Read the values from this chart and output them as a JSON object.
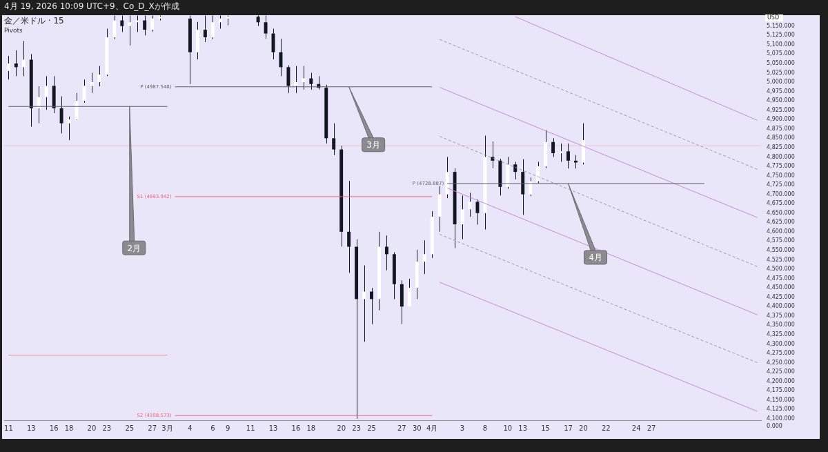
{
  "chart_data": {
    "type": "candlestick",
    "title": "金／米ドル · 15",
    "subtitle": "Pivots",
    "ylabel": "USD",
    "color": "#131722",
    "categories": [
      "11",
      null,
      null,
      "13",
      null,
      null,
      "16",
      null,
      "18",
      null,
      null,
      "20",
      null,
      "23",
      null,
      null,
      "25",
      null,
      null,
      "27",
      null,
      "3月",
      null,
      null,
      "4",
      null,
      null,
      "6",
      null,
      "9",
      null,
      null,
      "11",
      null,
      null,
      "13",
      null,
      null,
      "16",
      null,
      "18",
      null,
      null,
      null,
      "20",
      null,
      "23",
      null,
      "25",
      null,
      null,
      null,
      "27",
      null,
      "30",
      null,
      "4月",
      null,
      null,
      null,
      "3",
      null,
      null,
      "8",
      null,
      null,
      "10",
      null,
      "13",
      null,
      null,
      "15",
      null,
      null,
      "17",
      null,
      "20",
      null,
      null,
      "22",
      null,
      null,
      null,
      "24",
      null,
      "27",
      null,
      null,
      null,
      null,
      null,
      null,
      null,
      null,
      null,
      null,
      null,
      null,
      null,
      null
    ],
    "ohlc": [
      [
        5030,
        5070,
        5007,
        5050
      ],
      [
        5050,
        5085,
        5016,
        5040
      ],
      [
        5040,
        5110,
        5016,
        5060
      ],
      [
        5060,
        5075,
        4881,
        4930
      ],
      [
        4930,
        4989,
        4890,
        4960
      ],
      [
        4960,
        5016,
        4926,
        4990
      ],
      [
        4990,
        5016,
        4917,
        4930
      ],
      [
        4930,
        4962,
        4863,
        4890
      ],
      [
        4890,
        4908,
        4845,
        4900
      ],
      [
        4900,
        4971,
        4899,
        4950
      ],
      [
        4950,
        5007,
        4945,
        4990
      ],
      [
        4990,
        5025,
        4971,
        5000
      ],
      [
        5000,
        5043,
        4989,
        5020
      ],
      [
        5020,
        5143,
        5016,
        5120
      ],
      [
        5120,
        5178,
        5115,
        5165
      ],
      [
        5165,
        5178,
        5134,
        5150
      ],
      [
        5150,
        5178,
        5098,
        5160
      ],
      [
        5160,
        5178,
        5134,
        5165
      ],
      [
        5165,
        5178,
        5125,
        5140
      ],
      [
        5140,
        5178,
        5135,
        5170
      ],
      [
        5170,
        5178,
        5165,
        5175
      ],
      null,
      null,
      null,
      [
        5170,
        5178,
        4995,
        5080
      ],
      [
        5080,
        5161,
        5061,
        5140
      ],
      [
        5140,
        5178,
        5107,
        5120
      ],
      [
        5120,
        5178,
        5115,
        5160
      ],
      [
        5160,
        5178,
        5143,
        5170
      ],
      [
        5170,
        5178,
        5152,
        5175
      ],
      null,
      null,
      null,
      [
        5175,
        5178,
        5150,
        5160
      ],
      [
        5160,
        5178,
        5116,
        5130
      ],
      [
        5130,
        5143,
        5061,
        5080
      ],
      [
        5080,
        5116,
        5016,
        5040
      ],
      [
        5040,
        5045,
        4971,
        4990
      ],
      [
        4990,
        5043,
        4971,
        5000
      ],
      [
        5000,
        5043,
        4980,
        5010
      ],
      [
        5010,
        5025,
        4980,
        4995
      ],
      [
        4995,
        5016,
        4980,
        4985
      ],
      [
        4985,
        4993,
        4836,
        4850
      ],
      [
        4850,
        4890,
        4805,
        4820
      ],
      [
        4820,
        4830,
        4560,
        4600
      ],
      [
        4600,
        4736,
        4490,
        4560
      ],
      [
        4560,
        4580,
        4100,
        4420
      ],
      [
        4420,
        4510,
        4306,
        4440
      ],
      [
        4440,
        4450,
        4353,
        4420
      ],
      [
        4420,
        4600,
        4390,
        4560
      ],
      [
        4560,
        4590,
        4497,
        4540
      ],
      [
        4540,
        4545,
        4420,
        4460
      ],
      [
        4460,
        4470,
        4353,
        4400
      ],
      [
        4400,
        4474,
        4400,
        4450
      ],
      [
        4450,
        4552,
        4420,
        4520
      ],
      [
        4520,
        4577,
        4487,
        4540
      ],
      [
        4540,
        4655,
        4530,
        4640
      ],
      [
        4640,
        4722,
        4600,
        4700
      ],
      [
        4700,
        4800,
        4690,
        4760
      ],
      [
        4760,
        4770,
        4556,
        4620
      ],
      [
        4620,
        4697,
        4580,
        4660
      ],
      [
        4660,
        4704,
        4640,
        4680
      ],
      [
        4680,
        4686,
        4619,
        4650
      ],
      [
        4650,
        4857,
        4606,
        4800
      ],
      [
        4800,
        4841,
        4770,
        4790
      ],
      [
        4790,
        4795,
        4697,
        4720
      ],
      [
        4720,
        4800,
        4715,
        4780
      ],
      [
        4780,
        4787,
        4740,
        4760
      ],
      [
        4760,
        4794,
        4645,
        4700
      ],
      [
        4700,
        4745,
        4695,
        4735
      ],
      [
        4735,
        4787,
        4730,
        4775
      ],
      [
        4775,
        4872,
        4770,
        4840
      ],
      [
        4840,
        4850,
        4800,
        4810
      ],
      [
        4810,
        4836,
        4787,
        4815
      ],
      [
        4815,
        4836,
        4769,
        4790
      ],
      [
        4790,
        4805,
        4769,
        4785
      ],
      [
        4785,
        4890,
        4780,
        4845
      ],
      null,
      null,
      null,
      null,
      null,
      null,
      null,
      null,
      null,
      null,
      null,
      null,
      null,
      null,
      null,
      null,
      null,
      null,
      null,
      null,
      null,
      null,
      null
    ],
    "series": [
      {
        "type": "line",
        "color": "#5d606b",
        "values": [
          4935,
          null,
          null,
          null,
          null,
          null,
          null,
          null,
          null,
          null,
          null,
          null,
          null,
          null,
          null,
          null,
          null,
          null,
          null,
          null,
          null,
          4935,
          null,
          null,
          null,
          null,
          null,
          null,
          null,
          null,
          null,
          null,
          null,
          null,
          null,
          null,
          null,
          null,
          null,
          null,
          null,
          null,
          null,
          null,
          null,
          null,
          null,
          null,
          null,
          null,
          null,
          null,
          null,
          null,
          null,
          null,
          null,
          null,
          null,
          null,
          null,
          null,
          null,
          null,
          null,
          null,
          null,
          null,
          null,
          null,
          null,
          null,
          null,
          null,
          null,
          null,
          null,
          null,
          null,
          null,
          null,
          null,
          null,
          null,
          null,
          null,
          null,
          null,
          null,
          null,
          null,
          null,
          null,
          null,
          null,
          null,
          null,
          null,
          null,
          null
        ]
      },
      {
        "type": "line",
        "color": "#f08a9c",
        "values": [
          4270,
          null,
          null,
          null,
          null,
          null,
          null,
          null,
          null,
          null,
          null,
          null,
          null,
          null,
          null,
          null,
          null,
          null,
          null,
          null,
          null,
          4270,
          null,
          null,
          null,
          null,
          null,
          null,
          null,
          null,
          null,
          null,
          null,
          null,
          null,
          null,
          null,
          null,
          null,
          null,
          null,
          null,
          null,
          null,
          null,
          null,
          null,
          null,
          null,
          null,
          null,
          null,
          null,
          null,
          null,
          null,
          null,
          null,
          null,
          null,
          null,
          null,
          null,
          null,
          null,
          null,
          null,
          null,
          null,
          null,
          null,
          null,
          null,
          null,
          null,
          null,
          null,
          null,
          null,
          null,
          null,
          null,
          null,
          null,
          null,
          null,
          null,
          null,
          null,
          null,
          null,
          null,
          null,
          null,
          null,
          null,
          null,
          null,
          null,
          null
        ]
      },
      {
        "type": "line",
        "name": "P (4987.548)",
        "color": "#5d606b",
        "values": [
          null,
          null,
          null,
          null,
          null,
          null,
          null,
          null,
          null,
          null,
          null,
          null,
          null,
          null,
          null,
          null,
          null,
          null,
          null,
          null,
          null,
          null,
          4987.548,
          null,
          null,
          null,
          null,
          null,
          null,
          null,
          null,
          null,
          null,
          null,
          null,
          null,
          null,
          null,
          null,
          null,
          null,
          null,
          null,
          null,
          null,
          null,
          null,
          null,
          null,
          null,
          null,
          null,
          null,
          null,
          null,
          null,
          4987.548,
          null,
          null,
          null,
          null,
          null,
          null,
          null,
          null,
          null,
          null,
          null,
          null,
          null,
          null,
          null,
          null,
          null,
          null,
          null,
          null,
          null,
          null,
          null,
          null,
          null,
          null,
          null,
          null,
          null,
          null,
          null,
          null,
          null,
          null,
          null,
          null,
          null,
          null,
          null,
          null,
          null,
          null,
          null
        ]
      },
      {
        "type": "line",
        "name": "S1 (4693.942)",
        "color": "#f0627a",
        "values": [
          null,
          null,
          null,
          null,
          null,
          null,
          null,
          null,
          null,
          null,
          null,
          null,
          null,
          null,
          null,
          null,
          null,
          null,
          null,
          null,
          null,
          null,
          4693.942,
          null,
          null,
          null,
          null,
          null,
          null,
          null,
          null,
          null,
          null,
          null,
          null,
          null,
          null,
          null,
          null,
          null,
          null,
          null,
          null,
          null,
          null,
          null,
          null,
          null,
          null,
          null,
          null,
          null,
          null,
          null,
          null,
          null,
          4693.942,
          null,
          null,
          null,
          null,
          null,
          null,
          null,
          null,
          null,
          null,
          null,
          null,
          null,
          null,
          null,
          null,
          null,
          null,
          null,
          null,
          null,
          null,
          null,
          null,
          null,
          null,
          null,
          null,
          null,
          null,
          null,
          null,
          null,
          null,
          null,
          null,
          null,
          null,
          null,
          null,
          null,
          null,
          null
        ]
      },
      {
        "type": "line",
        "name": "S2 (4108.573)",
        "color": "#f0627a",
        "values": [
          null,
          null,
          null,
          null,
          null,
          null,
          null,
          null,
          null,
          null,
          null,
          null,
          null,
          null,
          null,
          null,
          null,
          null,
          null,
          null,
          null,
          null,
          4108.573,
          null,
          null,
          null,
          null,
          null,
          null,
          null,
          null,
          null,
          null,
          null,
          null,
          null,
          null,
          null,
          null,
          null,
          null,
          null,
          null,
          null,
          null,
          null,
          null,
          null,
          null,
          null,
          null,
          null,
          null,
          null,
          null,
          null,
          4108.573,
          null,
          null,
          null,
          null,
          null,
          null,
          null,
          null,
          null,
          null,
          null,
          null,
          null,
          null,
          null,
          null,
          null,
          null,
          null,
          null,
          null,
          null,
          null,
          null,
          null,
          null,
          null,
          null,
          null,
          null,
          null,
          null,
          null,
          null,
          null,
          null,
          null,
          null,
          null,
          null,
          null,
          null,
          null
        ]
      },
      {
        "type": "line",
        "name": "P (4728.887)",
        "color": "#5d606b",
        "values": [
          null,
          null,
          null,
          null,
          null,
          null,
          null,
          null,
          null,
          null,
          null,
          null,
          null,
          null,
          null,
          null,
          null,
          null,
          null,
          null,
          null,
          null,
          null,
          null,
          null,
          null,
          null,
          null,
          null,
          null,
          null,
          null,
          null,
          null,
          null,
          null,
          null,
          null,
          null,
          null,
          null,
          null,
          null,
          null,
          null,
          null,
          null,
          null,
          null,
          null,
          null,
          null,
          null,
          null,
          null,
          null,
          null,
          null,
          4728.887,
          null,
          null,
          null,
          null,
          null,
          null,
          null,
          null,
          null,
          null,
          null,
          null,
          null,
          null,
          null,
          null,
          null,
          null,
          null,
          null,
          null,
          null,
          null,
          null,
          null,
          null,
          null,
          null,
          null,
          null,
          null,
          null,
          null,
          4728.887,
          null,
          null,
          null,
          null,
          null,
          null,
          null
        ]
      },
      {
        "type": "line",
        "color": "#c98ad8",
        "values": [
          null,
          null,
          null,
          null,
          null,
          null,
          null,
          null,
          null,
          null,
          null,
          null,
          null,
          null,
          null,
          null,
          null,
          null,
          null,
          null,
          null,
          null,
          null,
          null,
          null,
          null,
          null,
          null,
          null,
          null,
          null,
          null,
          null,
          null,
          null,
          null,
          null,
          null,
          null,
          null,
          null,
          null,
          null,
          null,
          null,
          null,
          null,
          null,
          null,
          null,
          null,
          null,
          null,
          null,
          null,
          null,
          null,
          null,
          null,
          null,
          null,
          null,
          null,
          null,
          null,
          null,
          null,
          5175,
          null,
          null,
          null,
          null,
          null,
          null,
          null,
          null,
          null,
          null,
          null,
          null,
          null,
          null,
          null,
          null,
          null,
          null,
          null,
          null,
          null,
          null,
          null,
          null,
          null,
          null,
          null,
          null,
          null,
          null,
          null,
          4898
        ]
      },
      {
        "type": "line",
        "color": "#9c98ad",
        "line_style": "dashed",
        "values": [
          null,
          null,
          null,
          null,
          null,
          null,
          null,
          null,
          null,
          null,
          null,
          null,
          null,
          null,
          null,
          null,
          null,
          null,
          null,
          null,
          null,
          null,
          null,
          null,
          null,
          null,
          null,
          null,
          null,
          null,
          null,
          null,
          null,
          null,
          null,
          null,
          null,
          null,
          null,
          null,
          null,
          null,
          null,
          null,
          null,
          null,
          null,
          null,
          null,
          null,
          null,
          null,
          null,
          null,
          null,
          null,
          null,
          5114,
          null,
          null,
          null,
          null,
          null,
          null,
          null,
          null,
          null,
          null,
          null,
          null,
          null,
          null,
          null,
          null,
          null,
          null,
          null,
          null,
          null,
          null,
          null,
          null,
          null,
          null,
          null,
          null,
          null,
          null,
          null,
          null,
          null,
          null,
          null,
          null,
          null,
          null,
          null,
          null,
          null,
          4767
        ]
      },
      {
        "type": "line",
        "color": "#c98ad8",
        "values": [
          null,
          null,
          null,
          null,
          null,
          null,
          null,
          null,
          null,
          null,
          null,
          null,
          null,
          null,
          null,
          null,
          null,
          null,
          null,
          null,
          null,
          null,
          null,
          null,
          null,
          null,
          null,
          null,
          null,
          null,
          null,
          null,
          null,
          null,
          null,
          null,
          null,
          null,
          null,
          null,
          null,
          null,
          null,
          null,
          null,
          null,
          null,
          null,
          null,
          null,
          null,
          null,
          null,
          null,
          null,
          null,
          null,
          4986,
          null,
          null,
          null,
          null,
          null,
          null,
          null,
          null,
          null,
          null,
          null,
          null,
          null,
          null,
          null,
          null,
          null,
          null,
          null,
          null,
          null,
          null,
          null,
          null,
          null,
          null,
          null,
          null,
          null,
          null,
          null,
          null,
          null,
          null,
          null,
          null,
          null,
          null,
          null,
          null,
          null,
          4638
        ]
      },
      {
        "type": "line",
        "color": "#9c98ad",
        "line_style": "dashed",
        "values": [
          null,
          null,
          null,
          null,
          null,
          null,
          null,
          null,
          null,
          null,
          null,
          null,
          null,
          null,
          null,
          null,
          null,
          null,
          null,
          null,
          null,
          null,
          null,
          null,
          null,
          null,
          null,
          null,
          null,
          null,
          null,
          null,
          null,
          null,
          null,
          null,
          null,
          null,
          null,
          null,
          null,
          null,
          null,
          null,
          null,
          null,
          null,
          null,
          null,
          null,
          null,
          null,
          null,
          null,
          null,
          null,
          null,
          4855,
          null,
          null,
          null,
          null,
          null,
          null,
          null,
          null,
          null,
          null,
          null,
          null,
          null,
          null,
          null,
          null,
          null,
          null,
          null,
          null,
          null,
          null,
          null,
          null,
          null,
          null,
          null,
          null,
          null,
          null,
          null,
          null,
          null,
          null,
          null,
          null,
          null,
          null,
          null,
          null,
          null,
          4507
        ]
      },
      {
        "type": "line",
        "color": "#c98ad8",
        "values": [
          null,
          null,
          null,
          null,
          null,
          null,
          null,
          null,
          null,
          null,
          null,
          null,
          null,
          null,
          null,
          null,
          null,
          null,
          null,
          null,
          null,
          null,
          null,
          null,
          null,
          null,
          null,
          null,
          null,
          null,
          null,
          null,
          null,
          null,
          null,
          null,
          null,
          null,
          null,
          null,
          null,
          null,
          null,
          null,
          null,
          null,
          null,
          null,
          null,
          null,
          null,
          null,
          null,
          null,
          null,
          null,
          null,
          null,
          4717,
          null,
          null,
          null,
          null,
          null,
          null,
          null,
          null,
          null,
          null,
          null,
          null,
          null,
          null,
          null,
          null,
          null,
          null,
          null,
          null,
          null,
          null,
          null,
          null,
          null,
          null,
          null,
          null,
          null,
          null,
          null,
          null,
          null,
          null,
          null,
          null,
          null,
          null,
          null,
          null,
          4378
        ]
      },
      {
        "type": "line",
        "color": "#9c98ad",
        "line_style": "dashed",
        "values": [
          null,
          null,
          null,
          null,
          null,
          null,
          null,
          null,
          null,
          null,
          null,
          null,
          null,
          null,
          null,
          null,
          null,
          null,
          null,
          null,
          null,
          null,
          null,
          null,
          null,
          null,
          null,
          null,
          null,
          null,
          null,
          null,
          null,
          null,
          null,
          null,
          null,
          null,
          null,
          null,
          null,
          null,
          null,
          null,
          null,
          null,
          null,
          null,
          null,
          null,
          null,
          null,
          null,
          null,
          null,
          null,
          null,
          4593,
          null,
          null,
          null,
          null,
          null,
          null,
          null,
          null,
          null,
          null,
          null,
          null,
          null,
          null,
          null,
          null,
          null,
          null,
          null,
          null,
          null,
          null,
          null,
          null,
          null,
          null,
          null,
          null,
          null,
          null,
          null,
          null,
          null,
          null,
          null,
          null,
          null,
          null,
          null,
          null,
          null,
          4250
        ]
      },
      {
        "type": "line",
        "color": "#c98ad8",
        "values": [
          null,
          null,
          null,
          null,
          null,
          null,
          null,
          null,
          null,
          null,
          null,
          null,
          null,
          null,
          null,
          null,
          null,
          null,
          null,
          null,
          null,
          null,
          null,
          null,
          null,
          null,
          null,
          null,
          null,
          null,
          null,
          null,
          null,
          null,
          null,
          null,
          null,
          null,
          null,
          null,
          null,
          null,
          null,
          null,
          null,
          null,
          null,
          null,
          null,
          null,
          null,
          null,
          null,
          null,
          null,
          null,
          null,
          4465,
          null,
          null,
          null,
          null,
          null,
          null,
          null,
          null,
          null,
          null,
          null,
          null,
          null,
          null,
          null,
          null,
          null,
          null,
          null,
          null,
          null,
          null,
          null,
          null,
          null,
          null,
          null,
          null,
          null,
          null,
          null,
          null,
          null,
          null,
          null,
          null,
          null,
          null,
          null,
          null,
          null,
          4120
        ]
      }
    ],
    "ref_lines": [
      {
        "axis": "y",
        "value": 4830,
        "color": "#f4c4d4"
      }
    ],
    "colors": [
      "#ffffff",
      "#131722",
      "#ffffff",
      "#131722",
      "#ffffff",
      "#ffffff",
      "#131722",
      "#131722",
      "#ffffff",
      "#ffffff",
      "#ffffff",
      "#ffffff",
      "#ffffff",
      "#ffffff",
      "#ffffff",
      "#131722",
      "#ffffff",
      "#ffffff",
      "#131722",
      "#ffffff",
      "#ffffff",
      null,
      null,
      null,
      "#131722",
      "#ffffff",
      "#131722",
      "#ffffff",
      "#ffffff",
      "#ffffff",
      null,
      null,
      null,
      "#131722",
      "#131722",
      "#131722",
      "#131722",
      "#131722",
      "#ffffff",
      "#ffffff",
      "#131722",
      "#131722",
      "#131722",
      "#131722",
      "#131722",
      "#131722",
      "#131722",
      "#ffffff",
      "#131722",
      "#ffffff",
      "#131722",
      "#131722",
      "#131722",
      "#ffffff",
      "#ffffff",
      "#ffffff",
      "#ffffff",
      "#ffffff",
      "#ffffff",
      "#131722",
      "#ffffff",
      "#ffffff",
      "#131722",
      "#ffffff",
      "#131722",
      "#131722",
      "#ffffff",
      "#131722",
      "#131722",
      "#ffffff",
      "#ffffff",
      "#ffffff",
      "#131722",
      "#ffffff",
      "#131722",
      "#131722",
      "#ffffff",
      null,
      null,
      null,
      null,
      null,
      null,
      null,
      null,
      null,
      null,
      null,
      null,
      null,
      null,
      null,
      null,
      null,
      null,
      null,
      null,
      null,
      null,
      null
    ],
    "ylim": [
      4096,
      5179
    ],
    "yticks": [
      {
        "value": 4100,
        "label": "4,100.000"
      },
      {
        "value": 4125,
        "label": "4,125.000"
      },
      {
        "value": 4150,
        "label": "4,150.000"
      },
      {
        "value": 4175,
        "label": "4,175.000"
      },
      {
        "value": 4200,
        "label": "4,200.000"
      },
      {
        "value": 4225,
        "label": "4,225.000"
      },
      {
        "value": 4250,
        "label": "4,250.000"
      },
      {
        "value": 4275,
        "label": "4,275.000"
      },
      {
        "value": 4300,
        "label": "4,300.000"
      },
      {
        "value": 4325,
        "label": "4,325.000"
      },
      {
        "value": 4350,
        "label": "4,350.000"
      },
      {
        "value": 4375,
        "label": "4,375.000"
      },
      {
        "value": 4400,
        "label": "4,400.000"
      },
      {
        "value": 4425,
        "label": "4,425.000"
      },
      {
        "value": 4450,
        "label": "4,450.000"
      },
      {
        "value": 4475,
        "label": "4,475.000"
      },
      {
        "value": 4500,
        "label": "4,500.000"
      },
      {
        "value": 4525,
        "label": "4,525.000"
      },
      {
        "value": 4550,
        "label": "4,550.000"
      },
      {
        "value": 4575,
        "label": "4,575.000"
      },
      {
        "value": 4600,
        "label": "4,600.000"
      },
      {
        "value": 4625,
        "label": "4,625.000"
      },
      {
        "value": 4650,
        "label": "4,650.000"
      },
      {
        "value": 4675,
        "label": "4,675.000"
      },
      {
        "value": 4700,
        "label": "4,700.000"
      },
      {
        "value": 4725,
        "label": "4,725.000"
      },
      {
        "value": 4750,
        "label": "4,750.000"
      },
      {
        "value": 4775,
        "label": "4,775.000"
      },
      {
        "value": 4800,
        "label": "4,800.000"
      },
      {
        "value": 4825,
        "label": "4,825.000"
      },
      {
        "value": 4850,
        "label": "4,850.000"
      },
      {
        "value": 4875,
        "label": "4,875.000"
      },
      {
        "value": 4900,
        "label": "4,900.000"
      },
      {
        "value": 4925,
        "label": "4,925.000"
      },
      {
        "value": 4950,
        "label": "4,950.000"
      },
      {
        "value": 4975,
        "label": "4,975.000"
      },
      {
        "value": 5000,
        "label": "5,000.000"
      },
      {
        "value": 5025,
        "label": "5,025.000"
      },
      {
        "value": 5050,
        "label": "5,050.000"
      },
      {
        "value": 5075,
        "label": "5,075.000"
      },
      {
        "value": 5100,
        "label": "5,100.000"
      },
      {
        "value": 5125,
        "label": "5,125.000"
      },
      {
        "value": 5150,
        "label": "5,150.000"
      }
    ],
    "annotations": [
      "4月 19, 2026 10:09 UTC+9、Co_D_Xが作成",
      "2月",
      "3月",
      "4月",
      "0.000"
    ]
  }
}
